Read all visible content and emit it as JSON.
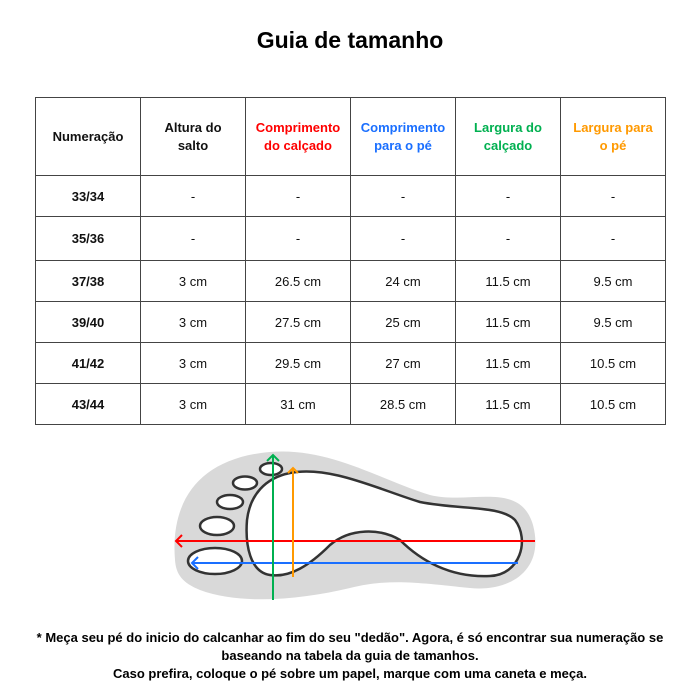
{
  "title": "Guia de tamanho",
  "table": {
    "headers": [
      {
        "label": "Numeração",
        "color": "#111111"
      },
      {
        "label": "Altura do salto",
        "color": "#111111"
      },
      {
        "label": "Comprimento do calçado",
        "color": "#ff0000"
      },
      {
        "label": "Comprimento para o pé",
        "color": "#1a6fff"
      },
      {
        "label": "Largura do calçado",
        "color": "#00b050"
      },
      {
        "label": "Largura para o pé",
        "color": "#ff9900"
      }
    ],
    "rows": [
      [
        "33/34",
        "-",
        "-",
        "-",
        "-",
        "-"
      ],
      [
        "35/36",
        "-",
        "-",
        "-",
        "-",
        "-"
      ],
      [
        "37/38",
        "3 cm",
        "26.5 cm",
        "24 cm",
        "11.5 cm",
        "9.5 cm"
      ],
      [
        "39/40",
        "3 cm",
        "27.5 cm",
        "25 cm",
        "11.5 cm",
        "9.5 cm"
      ],
      [
        "41/42",
        "3 cm",
        "29.5 cm",
        "27 cm",
        "11.5 cm",
        "10.5 cm"
      ],
      [
        "43/44",
        "3 cm",
        "31 cm",
        "28.5 cm",
        "11.5 cm",
        "10.5 cm"
      ]
    ]
  },
  "note": {
    "line1": "* Meça seu pé do inicio do calcanhar ao fim do seu \"dedão\". Agora, é só encontrar sua numeração se baseando na tabela da guia de tamanhos.",
    "line2": "Caso prefira, coloque o pé sobre um papel,  marque com uma caneta e meça."
  }
}
